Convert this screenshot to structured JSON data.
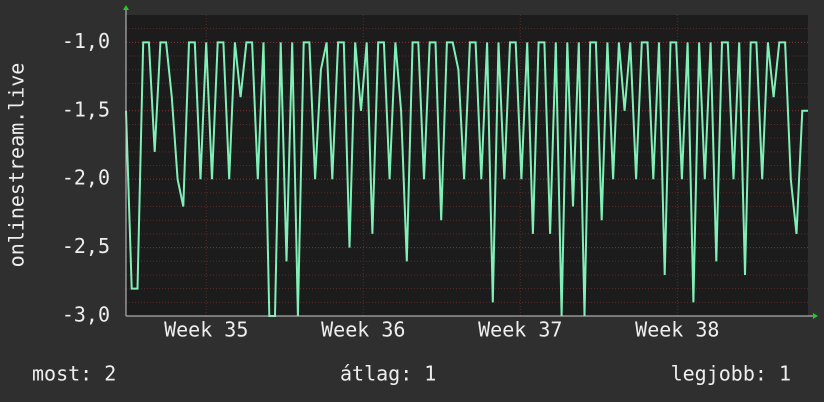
{
  "chart_data": {
    "type": "line",
    "y_label": "onlinestream.live",
    "series": [
      {
        "name": "onlinestream.live",
        "color": "#80f0b8",
        "values": [
          -1.5,
          -2.8,
          -2.8,
          -1,
          -1,
          -1.8,
          -1,
          -1,
          -1.4,
          -2,
          -2.2,
          -1,
          -1,
          -2,
          -1,
          -2,
          -1,
          -1,
          -2,
          -1,
          -1.4,
          -1,
          -1,
          -2,
          -1,
          -3,
          -3,
          -1,
          -2.6,
          -1,
          -3,
          -1,
          -1,
          -2,
          -1.2,
          -1,
          -2,
          -1,
          -1,
          -2.5,
          -1,
          -1.5,
          -1,
          -2.4,
          -1,
          -1,
          -2,
          -1,
          -1.5,
          -2.6,
          -1,
          -1,
          -2,
          -1,
          -1,
          -2.3,
          -1,
          -1,
          -1.2,
          -2,
          -1,
          -1,
          -2,
          -1,
          -2.9,
          -1,
          -2,
          -1,
          -1,
          -2,
          -1,
          -2.4,
          -1,
          -1,
          -2.4,
          -1,
          -3,
          -1,
          -2.2,
          -1,
          -3,
          -1,
          -1,
          -2.3,
          -1,
          -2,
          -1,
          -1.5,
          -1,
          -2,
          -1,
          -1,
          -2,
          -1,
          -2.7,
          -1,
          -1,
          -2,
          -1,
          -2.9,
          -1,
          -2,
          -1,
          -2.6,
          -1,
          -1,
          -2,
          -1,
          -2.7,
          -1,
          -1,
          -2,
          -1,
          -1.4,
          -1,
          -1,
          -2,
          -2.4,
          -1.5,
          -1.5
        ]
      }
    ],
    "xlim": [
      0,
      119
    ],
    "xticks": [
      {
        "value": 14,
        "label": "Week 35"
      },
      {
        "value": 41.4,
        "label": "Week 36"
      },
      {
        "value": 68.8,
        "label": "Week 37"
      },
      {
        "value": 96.2,
        "label": "Week 38"
      }
    ],
    "ylim": [
      -3,
      -0.8
    ],
    "yticks": [
      {
        "value": -3,
        "label": "-3,0"
      },
      {
        "value": -2.5,
        "label": "-2,5"
      },
      {
        "value": -2,
        "label": "-2,0"
      },
      {
        "value": -1.5,
        "label": "-1,5"
      },
      {
        "value": -1,
        "label": "-1,0"
      }
    ],
    "yminorticks": [
      -2.9,
      -2.8,
      -2.7,
      -2.6,
      -2.4,
      -2.3,
      -2.2,
      -2.1,
      -1.9,
      -1.8,
      -1.7,
      -1.6,
      -1.4,
      -1.3,
      -1.2,
      -1.1,
      -0.9
    ],
    "grid": true,
    "stats": [
      "most: 2",
      "átlag: 1",
      "legjobb: 1"
    ]
  }
}
